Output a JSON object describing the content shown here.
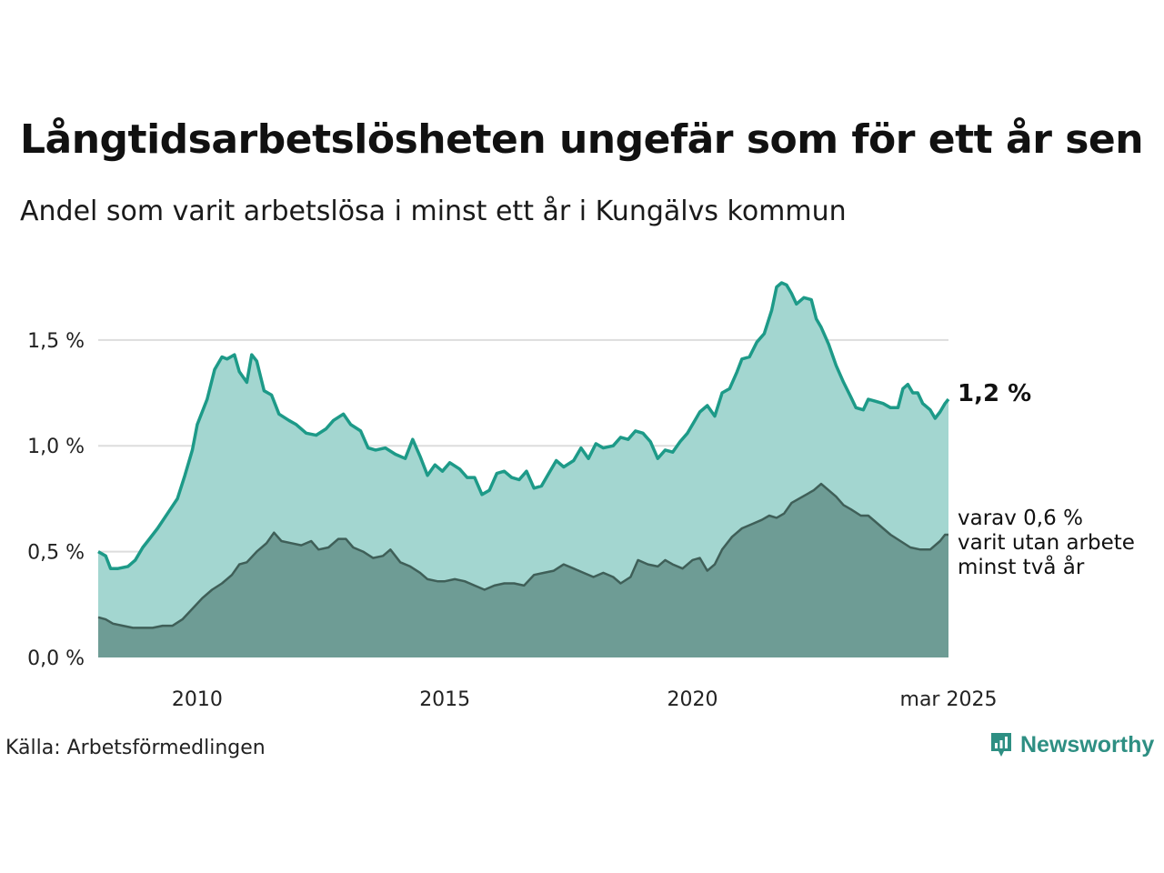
{
  "title": "Långtidsarbetslösheten ungefär som för ett år sen",
  "subtitle": "Andel som varit arbetslösa i minst ett år i Kungälvs kommun",
  "source": "Källa: Arbetsförmedlingen",
  "brand": "Newsworthy",
  "colors": {
    "area_total": "#a3d6d0",
    "line_total": "#1d9a88",
    "area_long": "#6e9c95",
    "line_long": "#3f5f58",
    "grid": "#dddddd",
    "brand": "#2e8f83"
  },
  "chart_data": {
    "type": "area",
    "title": "Långtidsarbetslösheten ungefär som för ett år sen",
    "subtitle": "Andel som varit arbetslösa i minst ett år i Kungälvs kommun",
    "x_range": [
      2008.0,
      2025.17
    ],
    "ylim": [
      0,
      1.8
    ],
    "y_ticks": [
      0.0,
      0.5,
      1.0,
      1.5
    ],
    "y_tick_labels": [
      "0,0 %",
      "0,5 %",
      "1,0 %",
      "1,5 %"
    ],
    "x_ticks": [
      2010,
      2015,
      2020,
      2025.17
    ],
    "x_tick_labels": [
      "2010",
      "2015",
      "2020",
      "mar 2025"
    ],
    "grid": "horizontal",
    "annotations": {
      "total_end": "1,2 %",
      "long_end": [
        "varav 0,6 %",
        "varit utan arbete",
        "minst två år"
      ]
    },
    "series": [
      {
        "points": [
          [
            2008.0,
            0.5
          ],
          [
            2008.15,
            0.48
          ],
          [
            2008.25,
            0.42
          ],
          [
            2008.4,
            0.42
          ],
          [
            2008.6,
            0.43
          ],
          [
            2008.75,
            0.46
          ],
          [
            2008.9,
            0.52
          ],
          [
            2009.0,
            0.55
          ],
          [
            2009.2,
            0.61
          ],
          [
            2009.4,
            0.68
          ],
          [
            2009.6,
            0.75
          ],
          [
            2009.75,
            0.86
          ],
          [
            2009.9,
            0.98
          ],
          [
            2010.0,
            1.1
          ],
          [
            2010.2,
            1.22
          ],
          [
            2010.35,
            1.36
          ],
          [
            2010.5,
            1.42
          ],
          [
            2010.6,
            1.41
          ],
          [
            2010.75,
            1.43
          ],
          [
            2010.85,
            1.35
          ],
          [
            2011.0,
            1.3
          ],
          [
            2011.1,
            1.43
          ],
          [
            2011.2,
            1.4
          ],
          [
            2011.35,
            1.26
          ],
          [
            2011.5,
            1.24
          ],
          [
            2011.65,
            1.15
          ],
          [
            2011.85,
            1.12
          ],
          [
            2012.0,
            1.1
          ],
          [
            2012.2,
            1.06
          ],
          [
            2012.4,
            1.05
          ],
          [
            2012.6,
            1.08
          ],
          [
            2012.75,
            1.12
          ],
          [
            2012.95,
            1.15
          ],
          [
            2013.1,
            1.1
          ],
          [
            2013.3,
            1.07
          ],
          [
            2013.45,
            0.99
          ],
          [
            2013.6,
            0.98
          ],
          [
            2013.8,
            0.99
          ],
          [
            2014.0,
            0.96
          ],
          [
            2014.2,
            0.94
          ],
          [
            2014.35,
            1.03
          ],
          [
            2014.5,
            0.95
          ],
          [
            2014.65,
            0.86
          ],
          [
            2014.8,
            0.91
          ],
          [
            2014.95,
            0.88
          ],
          [
            2015.1,
            0.92
          ],
          [
            2015.3,
            0.89
          ],
          [
            2015.45,
            0.85
          ],
          [
            2015.6,
            0.85
          ],
          [
            2015.75,
            0.77
          ],
          [
            2015.9,
            0.79
          ],
          [
            2016.05,
            0.87
          ],
          [
            2016.2,
            0.88
          ],
          [
            2016.35,
            0.85
          ],
          [
            2016.5,
            0.84
          ],
          [
            2016.65,
            0.88
          ],
          [
            2016.8,
            0.8
          ],
          [
            2016.95,
            0.81
          ],
          [
            2017.1,
            0.87
          ],
          [
            2017.25,
            0.93
          ],
          [
            2017.4,
            0.9
          ],
          [
            2017.6,
            0.93
          ],
          [
            2017.75,
            0.99
          ],
          [
            2017.9,
            0.94
          ],
          [
            2018.05,
            1.01
          ],
          [
            2018.2,
            0.99
          ],
          [
            2018.4,
            1.0
          ],
          [
            2018.55,
            1.04
          ],
          [
            2018.7,
            1.03
          ],
          [
            2018.85,
            1.07
          ],
          [
            2019.0,
            1.06
          ],
          [
            2019.15,
            1.02
          ],
          [
            2019.3,
            0.94
          ],
          [
            2019.45,
            0.98
          ],
          [
            2019.6,
            0.97
          ],
          [
            2019.75,
            1.02
          ],
          [
            2019.9,
            1.06
          ],
          [
            2020.0,
            1.1
          ],
          [
            2020.15,
            1.16
          ],
          [
            2020.3,
            1.19
          ],
          [
            2020.45,
            1.14
          ],
          [
            2020.6,
            1.25
          ],
          [
            2020.75,
            1.27
          ],
          [
            2020.9,
            1.35
          ],
          [
            2021.0,
            1.41
          ],
          [
            2021.15,
            1.42
          ],
          [
            2021.3,
            1.49
          ],
          [
            2021.45,
            1.53
          ],
          [
            2021.6,
            1.64
          ],
          [
            2021.7,
            1.75
          ],
          [
            2021.8,
            1.77
          ],
          [
            2021.9,
            1.76
          ],
          [
            2022.0,
            1.72
          ],
          [
            2022.1,
            1.67
          ],
          [
            2022.25,
            1.7
          ],
          [
            2022.4,
            1.69
          ],
          [
            2022.5,
            1.6
          ],
          [
            2022.6,
            1.56
          ],
          [
            2022.75,
            1.48
          ],
          [
            2022.9,
            1.38
          ],
          [
            2023.05,
            1.3
          ],
          [
            2023.2,
            1.23
          ],
          [
            2023.3,
            1.18
          ],
          [
            2023.45,
            1.17
          ],
          [
            2023.55,
            1.22
          ],
          [
            2023.7,
            1.21
          ],
          [
            2023.85,
            1.2
          ],
          [
            2024.0,
            1.18
          ],
          [
            2024.15,
            1.18
          ],
          [
            2024.25,
            1.27
          ],
          [
            2024.35,
            1.29
          ],
          [
            2024.45,
            1.25
          ],
          [
            2024.55,
            1.25
          ],
          [
            2024.65,
            1.2
          ],
          [
            2024.8,
            1.17
          ],
          [
            2024.9,
            1.13
          ],
          [
            2025.0,
            1.16
          ],
          [
            2025.1,
            1.2
          ],
          [
            2025.17,
            1.22
          ]
        ]
      },
      {
        "points": [
          [
            2008.0,
            0.19
          ],
          [
            2008.15,
            0.18
          ],
          [
            2008.3,
            0.16
          ],
          [
            2008.5,
            0.15
          ],
          [
            2008.7,
            0.14
          ],
          [
            2008.9,
            0.14
          ],
          [
            2009.1,
            0.14
          ],
          [
            2009.3,
            0.15
          ],
          [
            2009.5,
            0.15
          ],
          [
            2009.7,
            0.18
          ],
          [
            2009.9,
            0.23
          ],
          [
            2010.1,
            0.28
          ],
          [
            2010.3,
            0.32
          ],
          [
            2010.5,
            0.35
          ],
          [
            2010.7,
            0.39
          ],
          [
            2010.85,
            0.44
          ],
          [
            2011.0,
            0.45
          ],
          [
            2011.2,
            0.5
          ],
          [
            2011.4,
            0.54
          ],
          [
            2011.55,
            0.59
          ],
          [
            2011.7,
            0.55
          ],
          [
            2011.9,
            0.54
          ],
          [
            2012.1,
            0.53
          ],
          [
            2012.3,
            0.55
          ],
          [
            2012.45,
            0.51
          ],
          [
            2012.65,
            0.52
          ],
          [
            2012.85,
            0.56
          ],
          [
            2013.0,
            0.56
          ],
          [
            2013.15,
            0.52
          ],
          [
            2013.35,
            0.5
          ],
          [
            2013.55,
            0.47
          ],
          [
            2013.75,
            0.48
          ],
          [
            2013.9,
            0.51
          ],
          [
            2014.1,
            0.45
          ],
          [
            2014.3,
            0.43
          ],
          [
            2014.5,
            0.4
          ],
          [
            2014.65,
            0.37
          ],
          [
            2014.85,
            0.36
          ],
          [
            2015.0,
            0.36
          ],
          [
            2015.2,
            0.37
          ],
          [
            2015.4,
            0.36
          ],
          [
            2015.6,
            0.34
          ],
          [
            2015.8,
            0.32
          ],
          [
            2016.0,
            0.34
          ],
          [
            2016.2,
            0.35
          ],
          [
            2016.4,
            0.35
          ],
          [
            2016.6,
            0.34
          ],
          [
            2016.8,
            0.39
          ],
          [
            2017.0,
            0.4
          ],
          [
            2017.2,
            0.41
          ],
          [
            2017.4,
            0.44
          ],
          [
            2017.6,
            0.42
          ],
          [
            2017.8,
            0.4
          ],
          [
            2018.0,
            0.38
          ],
          [
            2018.2,
            0.4
          ],
          [
            2018.4,
            0.38
          ],
          [
            2018.55,
            0.35
          ],
          [
            2018.75,
            0.38
          ],
          [
            2018.9,
            0.46
          ],
          [
            2019.1,
            0.44
          ],
          [
            2019.3,
            0.43
          ],
          [
            2019.45,
            0.46
          ],
          [
            2019.6,
            0.44
          ],
          [
            2019.8,
            0.42
          ],
          [
            2020.0,
            0.46
          ],
          [
            2020.15,
            0.47
          ],
          [
            2020.3,
            0.41
          ],
          [
            2020.45,
            0.44
          ],
          [
            2020.6,
            0.51
          ],
          [
            2020.8,
            0.57
          ],
          [
            2021.0,
            0.61
          ],
          [
            2021.2,
            0.63
          ],
          [
            2021.4,
            0.65
          ],
          [
            2021.55,
            0.67
          ],
          [
            2021.7,
            0.66
          ],
          [
            2021.85,
            0.68
          ],
          [
            2022.0,
            0.73
          ],
          [
            2022.15,
            0.75
          ],
          [
            2022.3,
            0.77
          ],
          [
            2022.45,
            0.79
          ],
          [
            2022.6,
            0.82
          ],
          [
            2022.75,
            0.79
          ],
          [
            2022.9,
            0.76
          ],
          [
            2023.05,
            0.72
          ],
          [
            2023.2,
            0.7
          ],
          [
            2023.4,
            0.67
          ],
          [
            2023.55,
            0.67
          ],
          [
            2023.7,
            0.64
          ],
          [
            2023.85,
            0.61
          ],
          [
            2024.0,
            0.58
          ],
          [
            2024.2,
            0.55
          ],
          [
            2024.4,
            0.52
          ],
          [
            2024.6,
            0.51
          ],
          [
            2024.8,
            0.51
          ],
          [
            2025.0,
            0.55
          ],
          [
            2025.1,
            0.58
          ],
          [
            2025.17,
            0.58
          ]
        ]
      }
    ]
  }
}
